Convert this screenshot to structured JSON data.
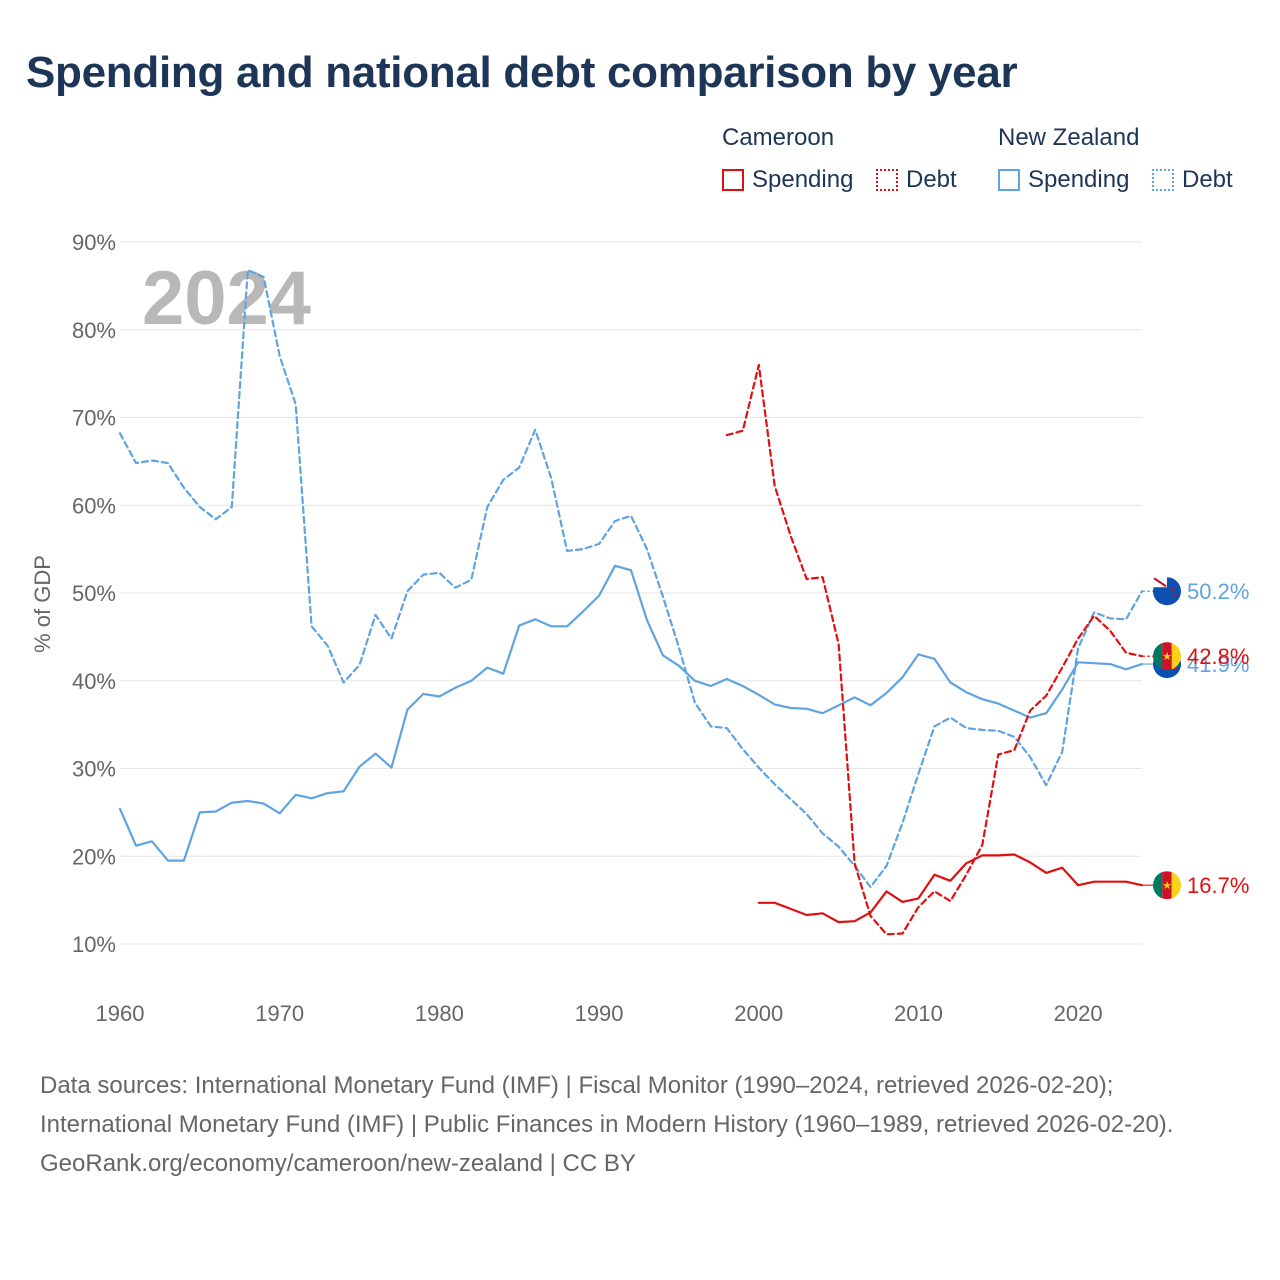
{
  "title": "Spending and national debt comparison by year",
  "legend": {
    "groups": [
      {
        "country": "Cameroon",
        "items": [
          {
            "label": "Spending",
            "style": "solid"
          },
          {
            "label": "Debt",
            "style": "dotted"
          }
        ],
        "color": "#e01010"
      },
      {
        "country": "New Zealand",
        "items": [
          {
            "label": "Spending",
            "style": "solid"
          },
          {
            "label": "Debt",
            "style": "dotted"
          }
        ],
        "color": "#5fa3e0"
      }
    ]
  },
  "year_watermark": "2024",
  "footer": {
    "sources": "Data sources: International Monetary Fund (IMF) | Fiscal Monitor (1990–2024, retrieved 2026-02-20); International Monetary Fund (IMF) | Public Finances in Modern History (1960–1989, retrieved 2026-02-20).",
    "credit": "GeoRank.org/economy/cameroon/new-zealand | CC BY"
  },
  "chart_data": {
    "type": "line",
    "title": "Spending and national debt comparison by year",
    "xlabel": "",
    "ylabel": "% of GDP",
    "xlim": [
      1960,
      2024
    ],
    "ylim": [
      10,
      90
    ],
    "x_ticks": [
      1960,
      1970,
      1980,
      1990,
      2000,
      2010,
      2020
    ],
    "y_ticks": [
      10,
      20,
      30,
      40,
      50,
      60,
      70,
      80,
      90
    ],
    "y_tick_labels": [
      "10%",
      "20%",
      "30%",
      "40%",
      "50%",
      "60%",
      "70%",
      "80%",
      "90%"
    ],
    "grid": true,
    "series": [
      {
        "name": "New Zealand Debt",
        "country": "New Zealand",
        "measure": "Debt",
        "color": "#5fa3e0",
        "dash": "dashed",
        "start_year": 1960,
        "values": [
          68.2,
          64.8,
          65.1,
          64.8,
          62.0,
          59.8,
          58.4,
          59.8,
          86.8,
          86.0,
          77.0,
          71.5,
          46.2,
          44.0,
          39.8,
          41.8,
          47.5,
          44.8,
          50.2,
          52.1,
          52.3,
          50.6,
          51.5,
          59.8,
          62.9,
          64.3,
          68.6,
          63.1,
          54.8,
          55.0,
          55.6,
          58.2,
          58.8,
          55.0,
          49.6,
          43.8,
          37.5,
          34.8,
          34.6,
          32.2,
          30.1,
          28.2,
          26.5,
          24.8,
          22.6,
          21.1,
          18.9,
          16.5,
          18.9,
          23.8,
          29.4,
          34.8,
          35.8,
          34.6,
          34.4,
          34.3,
          33.6,
          31.3,
          28.1,
          31.9,
          43.7,
          47.8,
          47.1,
          47.0,
          50.2
        ],
        "end_label": "50.2%"
      },
      {
        "name": "New Zealand Spending",
        "country": "New Zealand",
        "measure": "Spending",
        "color": "#5fa3e0",
        "dash": "solid",
        "start_year": 1960,
        "values": [
          25.4,
          21.2,
          21.7,
          19.5,
          19.5,
          25.0,
          25.1,
          26.1,
          26.3,
          26.0,
          24.9,
          27.0,
          26.6,
          27.2,
          27.4,
          30.2,
          31.7,
          30.1,
          36.7,
          38.5,
          38.2,
          39.2,
          40.0,
          41.5,
          40.8,
          46.3,
          47.0,
          46.2,
          46.2,
          47.9,
          49.7,
          53.1,
          52.6,
          46.9,
          42.9,
          41.7,
          40.0,
          39.4,
          40.2,
          39.4,
          38.4,
          37.3,
          36.9,
          36.8,
          36.3,
          37.2,
          38.1,
          37.2,
          38.6,
          40.4,
          43.0,
          42.5,
          39.8,
          38.7,
          37.9,
          37.4,
          36.6,
          35.8,
          36.3,
          39.0,
          42.1,
          42.0,
          41.9,
          41.3,
          41.9
        ],
        "end_label": "41.9%"
      },
      {
        "name": "Cameroon Debt",
        "country": "Cameroon",
        "measure": "Debt",
        "color": "#e01010",
        "dash": "dashed",
        "start_year": 1998,
        "values": [
          68.0,
          68.5,
          76.0,
          62.2,
          56.5,
          51.6,
          51.8,
          44.2,
          19.2,
          13.2,
          11.1,
          11.2,
          14.2,
          16.0,
          14.9,
          17.9,
          21.3,
          31.6,
          32.1,
          36.6,
          38.3,
          41.5,
          44.8,
          47.4,
          45.7,
          43.2,
          42.8
        ],
        "end_label": "42.8%"
      },
      {
        "name": "Cameroon Spending",
        "country": "Cameroon",
        "measure": "Spending",
        "color": "#e01010",
        "dash": "solid",
        "start_year": 2000,
        "values": [
          14.7,
          14.7,
          14.0,
          13.3,
          13.5,
          12.5,
          12.6,
          13.6,
          16.0,
          14.8,
          15.2,
          17.9,
          17.2,
          19.2,
          20.1,
          20.1,
          20.2,
          19.3,
          18.1,
          18.7,
          16.7,
          17.1,
          17.1,
          17.1,
          16.7
        ],
        "end_label": "16.7%"
      }
    ]
  }
}
